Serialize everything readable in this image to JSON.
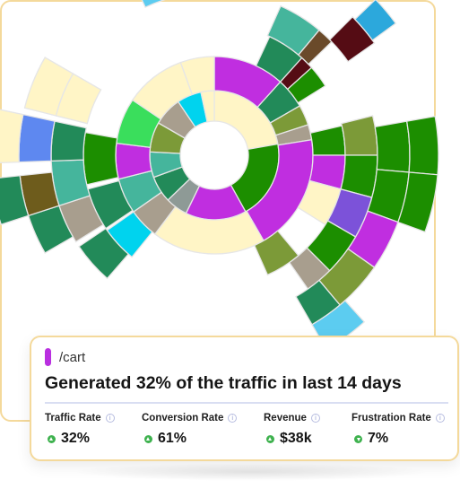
{
  "sunburst": {
    "rings": [
      {
        "r0": 38,
        "r1": 72,
        "segments": [
          {
            "start": 0,
            "end": 80,
            "color": "#fff5c6"
          },
          {
            "start": 80,
            "end": 151,
            "color": "#1c8e00"
          },
          {
            "start": 151,
            "end": 206,
            "color": "#c02ee0"
          },
          {
            "start": 206,
            "end": 226,
            "color": "#8e9a96"
          },
          {
            "start": 226,
            "end": 250,
            "color": "#228a59"
          },
          {
            "start": 250,
            "end": 273,
            "color": "#45b59c"
          },
          {
            "start": 273,
            "end": 300,
            "color": "#7c9a38"
          },
          {
            "start": 300,
            "end": 326,
            "color": "#a89e8e"
          },
          {
            "start": 326,
            "end": 348,
            "color": "#00d3ee"
          },
          {
            "start": 348,
            "end": 360,
            "color": "#fff5c6"
          }
        ]
      },
      {
        "r0": 72,
        "r1": 110,
        "segments": [
          {
            "start": 0,
            "end": 42,
            "color": "#c02ee0"
          },
          {
            "start": 42,
            "end": 60,
            "color": "#228a59"
          },
          {
            "start": 60,
            "end": 72,
            "color": "#7c9a38"
          },
          {
            "start": 72,
            "end": 81,
            "color": "#a89e8e"
          },
          {
            "start": 81,
            "end": 150,
            "color": "#c02ee0"
          },
          {
            "start": 150,
            "end": 217,
            "color": "#fff5c6"
          },
          {
            "start": 217,
            "end": 235,
            "color": "#a89e8e"
          },
          {
            "start": 235,
            "end": 256,
            "color": "#45b59c"
          },
          {
            "start": 256,
            "end": 277,
            "color": "#c02ee0"
          },
          {
            "start": 277,
            "end": 304,
            "color": "#3ade5c"
          },
          {
            "start": 304,
            "end": 340,
            "color": "#fff5c6"
          },
          {
            "start": 340,
            "end": 360,
            "color": "#fff5c6"
          }
        ]
      },
      {
        "r0": 110,
        "r1": 146,
        "segments": [
          {
            "start": 25,
            "end": 42,
            "color": "#228a59"
          },
          {
            "start": 42,
            "end": 48,
            "color": "#550c14"
          },
          {
            "start": 48,
            "end": 58,
            "color": "#1c8e00"
          },
          {
            "start": 77,
            "end": 90,
            "color": "#1c8e00"
          },
          {
            "start": 90,
            "end": 105,
            "color": "#c02ee0"
          },
          {
            "start": 105,
            "end": 122,
            "color": "#fff5c6"
          },
          {
            "start": 140,
            "end": 156,
            "color": "#7c9a38"
          },
          {
            "start": 219,
            "end": 235,
            "color": "#00d3ee"
          },
          {
            "start": 236,
            "end": 255,
            "color": "#228a59"
          },
          {
            "start": 257,
            "end": 280,
            "color": "#1c8e00"
          }
        ]
      },
      {
        "r0": 146,
        "r1": 182,
        "segments": [
          {
            "start": 24,
            "end": 40,
            "color": "#45b59c"
          },
          {
            "start": 40,
            "end": 46,
            "color": "#6a4a2a"
          },
          {
            "start": 76,
            "end": 90,
            "color": "#7c9a38"
          },
          {
            "start": 90,
            "end": 105,
            "color": "#1c8e00"
          },
          {
            "start": 105,
            "end": 120,
            "color": "#7c52d9"
          },
          {
            "start": 120,
            "end": 135,
            "color": "#1c8e00"
          },
          {
            "start": 135,
            "end": 145,
            "color": "#a89e8e"
          },
          {
            "start": 221,
            "end": 236,
            "color": "#228a59"
          },
          {
            "start": 238,
            "end": 252,
            "color": "#a89e8e"
          },
          {
            "start": 252,
            "end": 268,
            "color": "#45b59c"
          },
          {
            "start": 268,
            "end": 282,
            "color": "#228a59"
          },
          {
            "start": 284,
            "end": 300,
            "color": "#fff5c6"
          }
        ]
      },
      {
        "r0": 182,
        "r1": 218,
        "segments": [
          {
            "start": 45,
            "end": 55,
            "color": "#550c14"
          },
          {
            "start": 80,
            "end": 95,
            "color": "#1c8e00"
          },
          {
            "start": 95,
            "end": 110,
            "color": "#1c8e00"
          },
          {
            "start": 110,
            "end": 125,
            "color": "#c02ee0"
          },
          {
            "start": 125,
            "end": 140,
            "color": "#7c9a38"
          },
          {
            "start": 140,
            "end": 150,
            "color": "#228a59"
          },
          {
            "start": 240,
            "end": 252,
            "color": "#228a59"
          },
          {
            "start": 252,
            "end": 264,
            "color": "#6e5c1c"
          },
          {
            "start": 268,
            "end": 282,
            "color": "#5e88f0"
          },
          {
            "start": 284,
            "end": 300,
            "color": "#fff5c6"
          },
          {
            "start": 335,
            "end": 350,
            "color": "#5cccf0"
          }
        ]
      },
      {
        "r0": 218,
        "r1": 250,
        "segments": [
          {
            "start": 46,
            "end": 54,
            "color": "#2ca8dc"
          },
          {
            "start": 80,
            "end": 95,
            "color": "#1c8e00"
          },
          {
            "start": 95,
            "end": 110,
            "color": "#1c8e00"
          },
          {
            "start": 138,
            "end": 150,
            "color": "#5cccf0"
          },
          {
            "start": 252,
            "end": 264,
            "color": "#228a59"
          },
          {
            "start": 268,
            "end": 282,
            "color": "#fff5c6"
          }
        ]
      }
    ]
  },
  "info_card": {
    "page_path": "/cart",
    "page_color": "#b92fe0",
    "headline": "Generated 32% of the traffic in last 14 days",
    "metrics": [
      {
        "label": "Traffic Rate",
        "value": "32%",
        "trend": "up"
      },
      {
        "label": "Conversion Rate",
        "value": "61%",
        "trend": "up"
      },
      {
        "label": "Revenue",
        "value": "$38k",
        "trend": "up"
      },
      {
        "label": "Frustration Rate",
        "value": "7%",
        "trend": "down"
      }
    ],
    "info_icon": "info-circle-icon",
    "trend_color": "#3fb24f"
  }
}
